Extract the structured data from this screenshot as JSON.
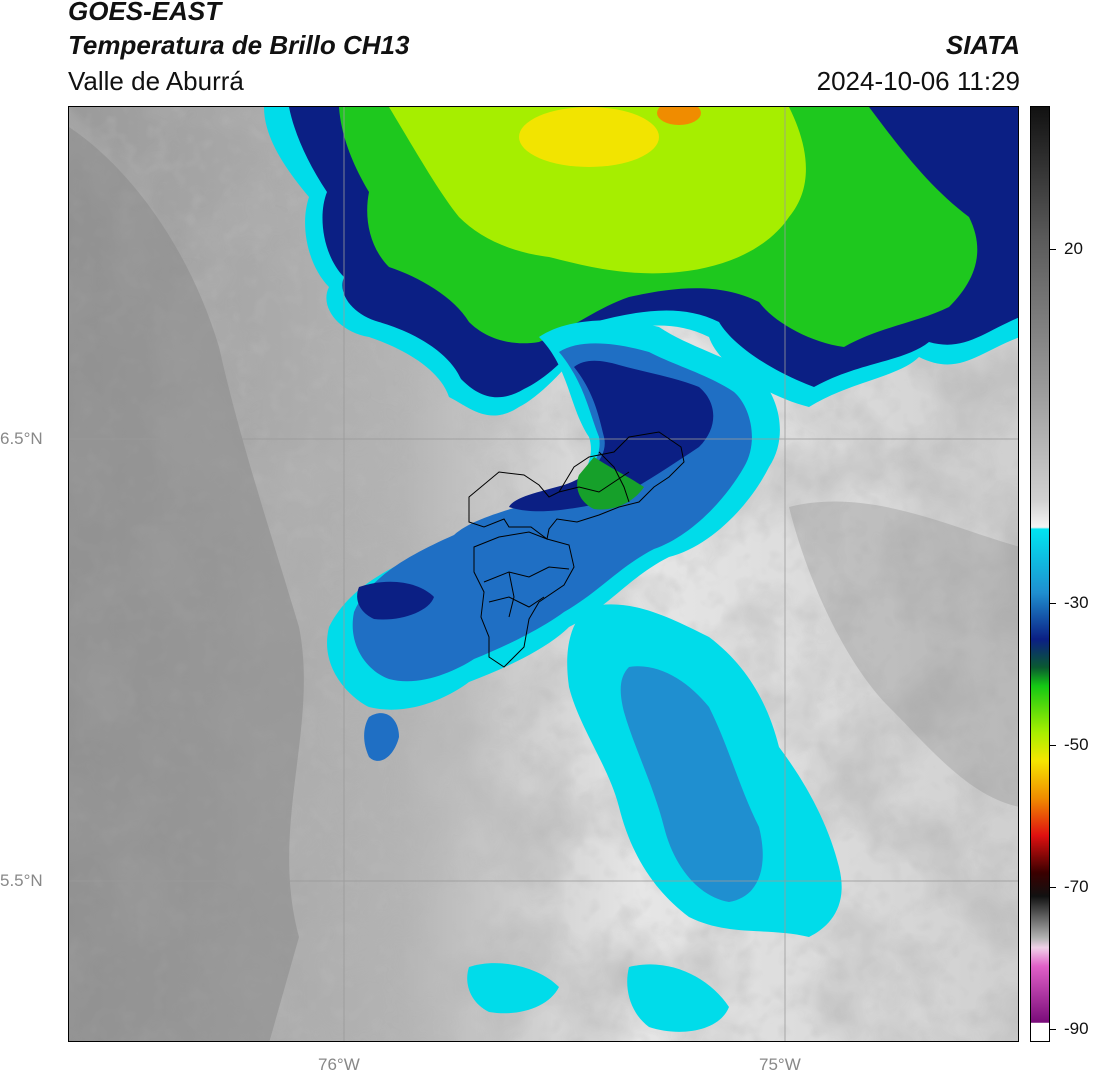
{
  "header": {
    "satellite": "GOES-EAST",
    "product": "Temperatura de Brillo CH13",
    "region": "Valle de Aburrá",
    "organization": "SIATA",
    "datetime": "2024-10-06 11:29"
  },
  "map": {
    "latitude_labels": [
      "6.5°N",
      "5.5°N"
    ],
    "longitude_labels": [
      "76°W",
      "75°W"
    ],
    "variable": "brightness temperature",
    "overlay": "municipal boundaries (Valle de Aburrá)"
  },
  "colorbar": {
    "ticks": [
      "20",
      "-30",
      "-50",
      "-70",
      "-90"
    ],
    "colors": {
      "warm_top": "#1a1a1a",
      "warm_gray": "#8c8c8c",
      "near_white": "#f2f2f2",
      "cyan": "#00e5f0",
      "blue": "#1f6fc4",
      "navy": "#0a1a80",
      "green": "#14c814",
      "lime": "#a8ef00",
      "yellow": "#f5e600",
      "orange": "#f08c00",
      "red": "#e01010",
      "dark_red": "#3a0000",
      "magenta": "#e060c8",
      "purple": "#7a0c7a",
      "bottom": "#ffffff"
    }
  }
}
